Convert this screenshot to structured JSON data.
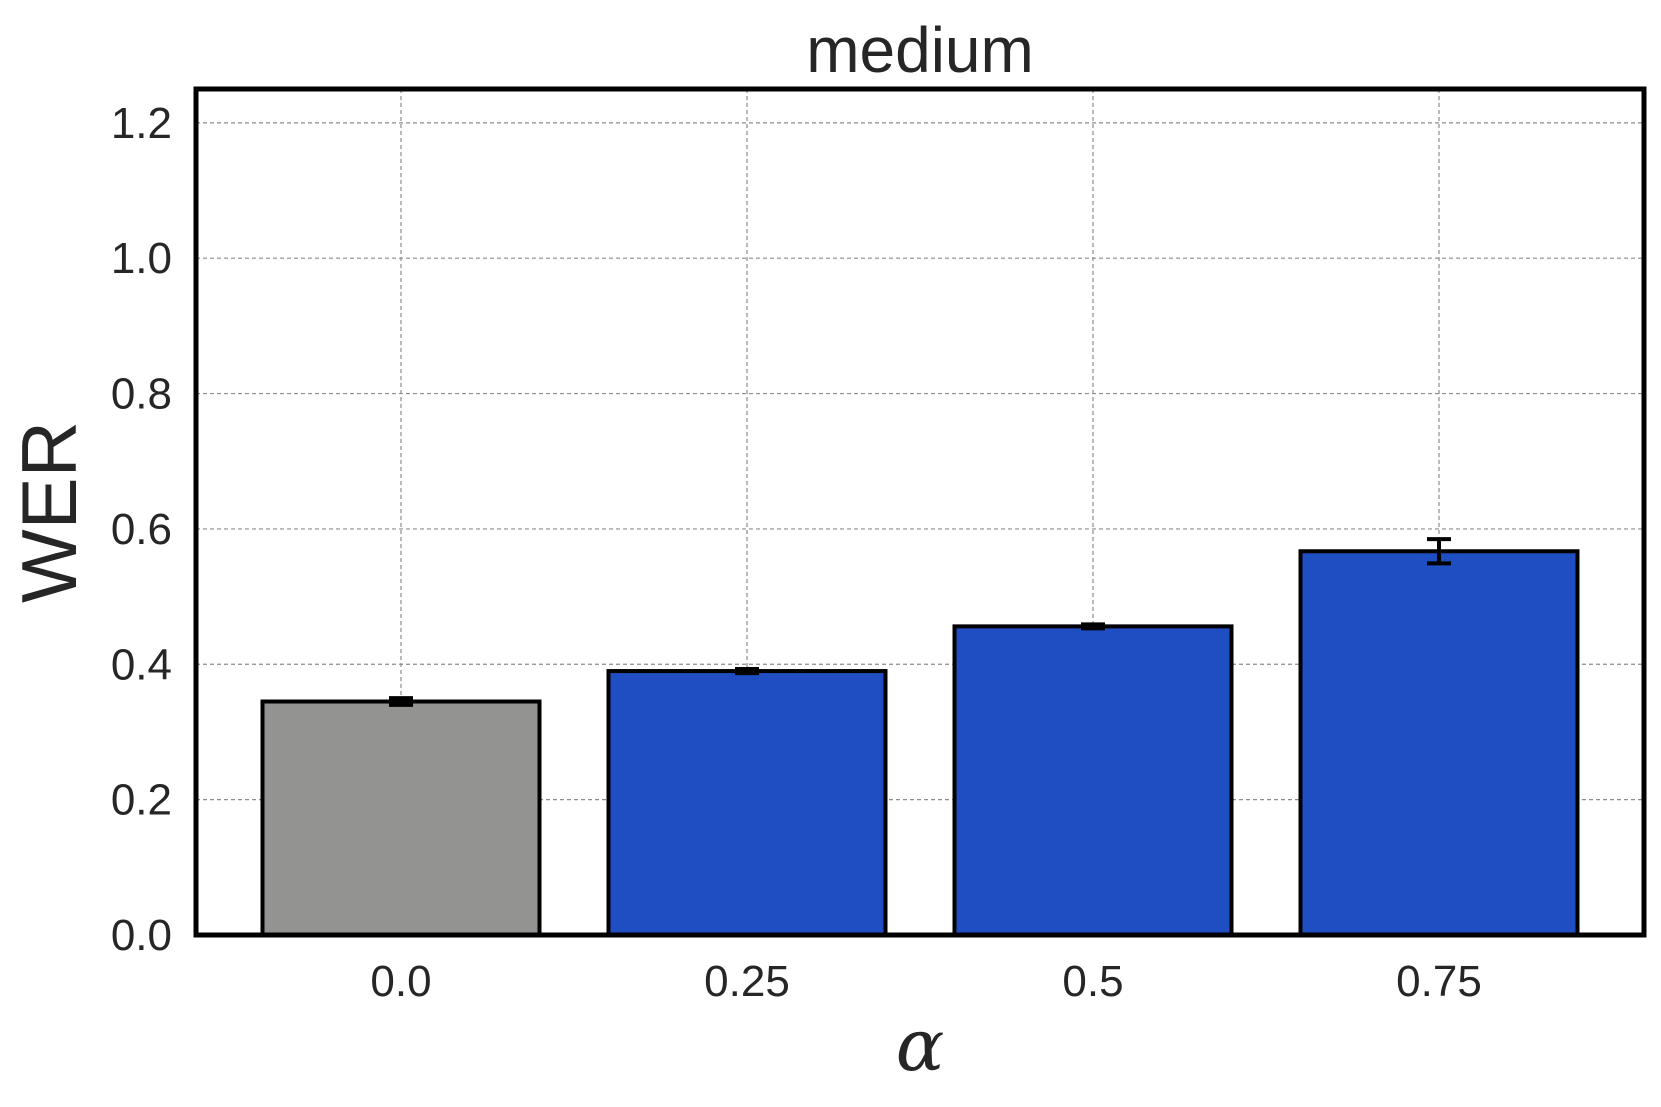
{
  "chart_data": {
    "type": "bar",
    "title": "medium",
    "xlabel": "α",
    "ylabel": "WER",
    "categories": [
      "0.0",
      "0.25",
      "0.5",
      "0.75"
    ],
    "values": [
      0.345,
      0.39,
      0.456,
      0.567
    ],
    "errors": [
      0.005,
      0.003,
      0.003,
      0.018
    ],
    "colors": [
      "#939491",
      "#1f4ec2",
      "#1f4ec2",
      "#1f4ec2"
    ],
    "ylim": [
      0,
      1.25
    ],
    "yticks": [
      "0.0",
      "0.2",
      "0.4",
      "0.6",
      "0.8",
      "1.0",
      "1.2"
    ],
    "grid": true
  }
}
